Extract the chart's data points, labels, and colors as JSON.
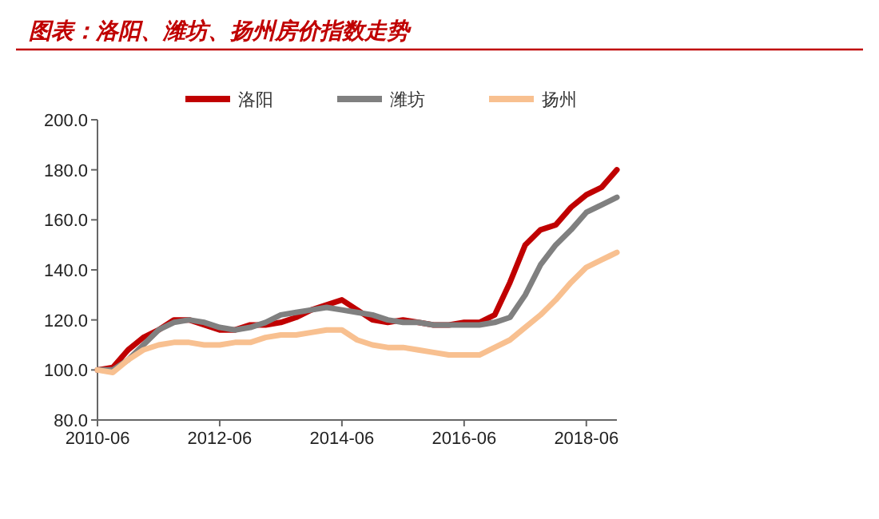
{
  "chart_data": {
    "type": "line",
    "title": "图表：洛阳、潍坊、扬州房价指数走势",
    "x": [
      "2010-06",
      "2010-09",
      "2010-12",
      "2011-03",
      "2011-06",
      "2011-09",
      "2011-12",
      "2012-03",
      "2012-06",
      "2012-09",
      "2012-12",
      "2013-03",
      "2013-06",
      "2013-09",
      "2013-12",
      "2014-03",
      "2014-06",
      "2014-09",
      "2014-12",
      "2015-03",
      "2015-06",
      "2015-09",
      "2015-12",
      "2016-03",
      "2016-06",
      "2016-09",
      "2016-12",
      "2017-03",
      "2017-06",
      "2017-09",
      "2017-12",
      "2018-03",
      "2018-06",
      "2018-09",
      "2018-12"
    ],
    "series": [
      {
        "name": "洛阳",
        "color": "#c00000",
        "values": [
          100,
          101,
          108,
          113,
          116,
          120,
          120,
          118,
          116,
          116,
          118,
          118,
          119,
          121,
          124,
          126,
          128,
          124,
          120,
          119,
          120,
          119,
          118,
          118,
          119,
          119,
          122,
          135,
          150,
          156,
          158,
          165,
          170,
          173,
          180
        ]
      },
      {
        "name": "潍坊",
        "color": "#808080",
        "values": [
          100,
          100,
          104,
          110,
          116,
          119,
          120,
          119,
          117,
          116,
          117,
          119,
          122,
          123,
          124,
          125,
          124,
          123,
          122,
          120,
          119,
          119,
          118,
          118,
          118,
          118,
          119,
          121,
          130,
          142,
          150,
          156,
          163,
          166,
          169
        ]
      },
      {
        "name": "扬州",
        "color": "#f8c090",
        "values": [
          100,
          99,
          104,
          108,
          110,
          111,
          111,
          110,
          110,
          111,
          111,
          113,
          114,
          114,
          115,
          116,
          116,
          112,
          110,
          109,
          109,
          108,
          107,
          106,
          106,
          106,
          109,
          112,
          117,
          122,
          128,
          135,
          141,
          144,
          147
        ]
      }
    ],
    "xlim": [
      "2010-06",
      "2018-12"
    ],
    "xticks": [
      "2010-06",
      "2012-06",
      "2014-06",
      "2016-06",
      "2018-06"
    ],
    "ylim": [
      80,
      200
    ],
    "yticks": [
      {
        "value": 80,
        "label": "80.0"
      },
      {
        "value": 100,
        "label": "100.0"
      },
      {
        "value": 120,
        "label": "120.0"
      },
      {
        "value": 140,
        "label": "140.0"
      },
      {
        "value": 160,
        "label": "160.0"
      },
      {
        "value": 180,
        "label": "180.0"
      },
      {
        "value": 200,
        "label": "200.0"
      }
    ],
    "legend": "top",
    "line_style": "solid"
  }
}
